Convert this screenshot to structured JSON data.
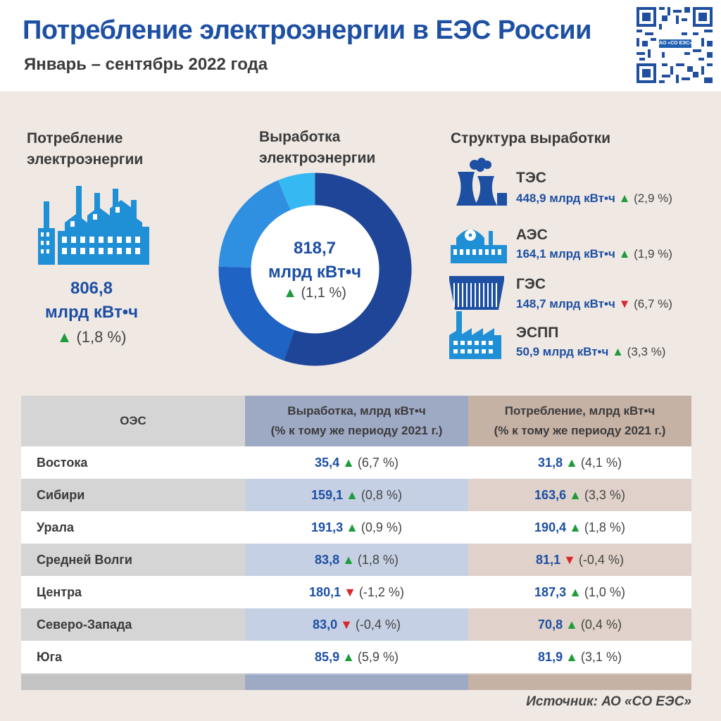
{
  "header": {
    "title": "Потребление электроэнергии в ЕЭС России",
    "subtitle": "Январь – сентябрь 2022 года",
    "qr_label": "АО «СО ЕЭС»"
  },
  "consumption": {
    "title_line1": "Потребление",
    "title_line2": "электроэнергии",
    "value": "806,8",
    "unit": "млрд кВт•ч",
    "change": "(1,8 %)",
    "trend": "up"
  },
  "generation": {
    "title_line1": "Выработка",
    "title_line2": "электроэнергии",
    "value": "818,7",
    "unit": "млрд кВт•ч",
    "change": "(1,1 %)",
    "trend": "up"
  },
  "structure": {
    "title": "Структура выработки",
    "items": [
      {
        "name": "ТЭС",
        "value": "448,9 млрд кВт•ч",
        "change": "(2,9 %)",
        "trend": "up",
        "icon": "thermal-plant-icon"
      },
      {
        "name": "АЭС",
        "value": "164,1 млрд кВт•ч",
        "change": "(1,9 %)",
        "trend": "up",
        "icon": "nuclear-plant-icon"
      },
      {
        "name": "ГЭС",
        "value": "148,7 млрд кВт•ч",
        "change": "(6,7 %)",
        "trend": "down",
        "icon": "hydro-plant-icon"
      },
      {
        "name": "ЭСПП",
        "value": "50,9 млрд кВт•ч",
        "change": "(3,3 %)",
        "trend": "up",
        "icon": "industrial-plant-icon"
      }
    ]
  },
  "chart_data": {
    "type": "pie",
    "categories": [
      "ТЭС",
      "АЭС",
      "ГЭС",
      "ЭСПП"
    ],
    "values": [
      448.9,
      164.1,
      148.7,
      50.9
    ],
    "colors": [
      "#1e4597",
      "#1f63c4",
      "#2f8fe0",
      "#36b8f2"
    ]
  },
  "table": {
    "headers": {
      "region": "ОЭС",
      "generation_line1": "Выработка, млрд кВт•ч",
      "generation_line2": "(% к тому же периоду 2021 г.)",
      "consumption_line1": "Потребление, млрд кВт•ч",
      "consumption_line2": "(% к тому же периоду 2021 г.)"
    },
    "rows": [
      {
        "region": "Востока",
        "gen": "35,4",
        "gen_change": "(6,7 %)",
        "gen_trend": "up",
        "cons": "31,8",
        "cons_change": "(4,1 %)",
        "cons_trend": "up"
      },
      {
        "region": "Сибири",
        "gen": "159,1",
        "gen_change": "(0,8 %)",
        "gen_trend": "up",
        "cons": "163,6",
        "cons_change": "(3,3 %)",
        "cons_trend": "up"
      },
      {
        "region": "Урала",
        "gen": "191,3",
        "gen_change": "(0,9 %)",
        "gen_trend": "up",
        "cons": "190,4",
        "cons_change": "(1,8 %)",
        "cons_trend": "up"
      },
      {
        "region": "Средней Волги",
        "gen": "83,8",
        "gen_change": "(1,8 %)",
        "gen_trend": "up",
        "cons": "81,1",
        "cons_change": "(-0,4 %)",
        "cons_trend": "down"
      },
      {
        "region": "Центра",
        "gen": "180,1",
        "gen_change": "(-1,2 %)",
        "gen_trend": "down",
        "cons": "187,3",
        "cons_change": "(1,0 %)",
        "cons_trend": "up"
      },
      {
        "region": "Северо-Запада",
        "gen": "83,0",
        "gen_change": "(-0,4 %)",
        "gen_trend": "down",
        "cons": "70,8",
        "cons_change": "(0,4 %)",
        "cons_trend": "up"
      },
      {
        "region": "Юга",
        "gen": "85,9",
        "gen_change": "(5,9 %)",
        "gen_trend": "up",
        "cons": "81,9",
        "cons_change": "(3,1 %)",
        "cons_trend": "up"
      }
    ]
  },
  "source": "Источник: АО «СО ЕЭС»",
  "colors": {
    "title_blue": "#1d4fa3",
    "up_green": "#1e9c3c",
    "down_red": "#d8262b",
    "icon_blue": "#1f8fd6",
    "icon_dark_blue": "#1d4fa3",
    "gen_column": "#c6d0e4",
    "cons_column": "#e0d2ca"
  }
}
